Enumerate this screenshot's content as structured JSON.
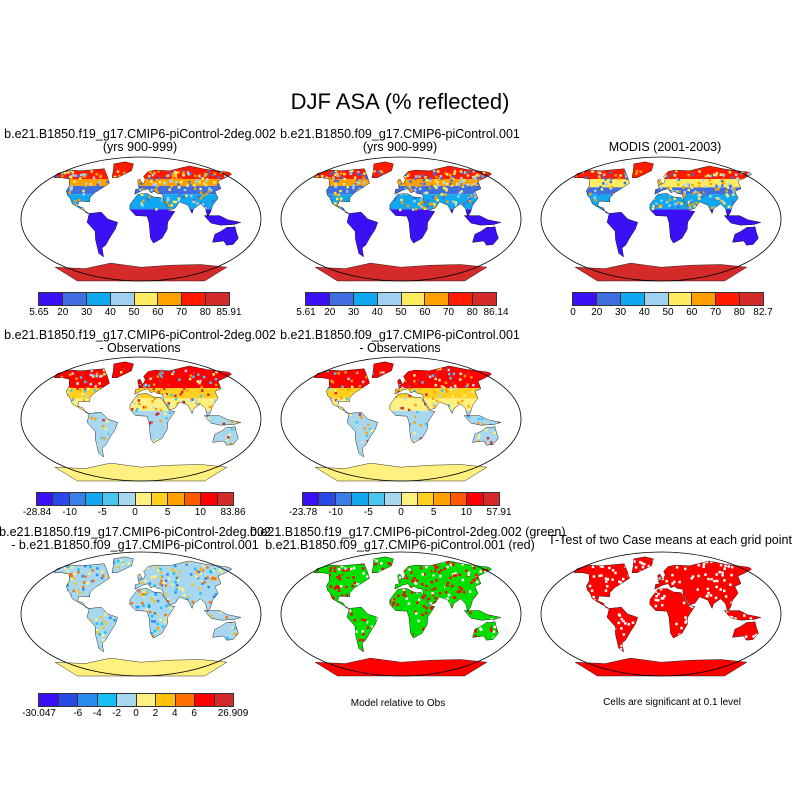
{
  "title": "DJF ASA (% reflected)",
  "panels": [
    {
      "id": "m1",
      "title1": "b.e21.B1850.f19_g17.CMIP6-piControl-2deg.002",
      "title2": "(yrs 900-999)"
    },
    {
      "id": "m2",
      "title1": "b.e21.B1850.f09_g17.CMIP6-piControl.001",
      "title2": "(yrs 900-999)"
    },
    {
      "id": "m3",
      "title1": "MODIS (2001-2003)",
      "title2": ""
    },
    {
      "id": "m4",
      "title1": "b.e21.B1850.f19_g17.CMIP6-piControl-2deg.002",
      "title2": "- Observations"
    },
    {
      "id": "m5",
      "title1": "b.e21.B1850.f09_g17.CMIP6-piControl.001",
      "title2": "- Observations"
    },
    {
      "id": "m7",
      "title1": "b.e21.B1850.f19_g17.CMIP6-piControl-2deg.002",
      "title2": "- b.e21.B1850.f09_g17.CMIP6-piControl.001"
    },
    {
      "id": "m8",
      "title1": "b.e21.B1850.f19_g17.CMIP6-piControl-2deg.002 (green)",
      "title2": "b.e21.B1850.f09_g17.CMIP6-piControl.001 (red)"
    },
    {
      "id": "m9",
      "title1": "T-Test of two Case means at each grid point",
      "title2": ""
    }
  ],
  "notes": {
    "model_relative": "Model relative to Obs",
    "significance": "Cells are significant at 0.1 level"
  },
  "chart_data": [
    {
      "type": "heatmap",
      "map": "m1",
      "colorbar_labels": [
        "5.65",
        "20",
        "30",
        "40",
        "50",
        "60",
        "70",
        "80",
        "85.91"
      ],
      "colors": [
        "#3c10f5",
        "#3f6ee0",
        "#10a8f0",
        "#a0d2f0",
        "#ffec60",
        "#ffa000",
        "#ff1a00",
        "#d42a2a"
      ]
    },
    {
      "type": "heatmap",
      "map": "m2",
      "colorbar_labels": [
        "5.61",
        "20",
        "30",
        "40",
        "50",
        "60",
        "70",
        "80",
        "86.14"
      ],
      "colors": [
        "#3c10f5",
        "#3f6ee0",
        "#10a8f0",
        "#a0d2f0",
        "#ffec60",
        "#ffa000",
        "#ff1a00",
        "#d42a2a"
      ]
    },
    {
      "type": "heatmap",
      "map": "m3",
      "colorbar_labels": [
        "0",
        "20",
        "30",
        "40",
        "50",
        "60",
        "70",
        "80",
        "82.7"
      ],
      "colors": [
        "#3c10f5",
        "#3f6ee0",
        "#10a8f0",
        "#a0d2f0",
        "#ffec60",
        "#ffa000",
        "#ff1a00",
        "#d42a2a"
      ]
    },
    {
      "type": "heatmap",
      "map": "m4",
      "colorbar_labels": [
        "-28.84",
        "-10",
        "-5",
        "0",
        "5",
        "10",
        "83.86"
      ],
      "colors": [
        "#3c10f5",
        "#2848e8",
        "#3a7ee8",
        "#12a8f0",
        "#4ac4f0",
        "#a8d8f0",
        "#fff080",
        "#ffd020",
        "#ffa000",
        "#ff5a00",
        "#ff0000",
        "#d42a2a"
      ]
    },
    {
      "type": "heatmap",
      "map": "m5",
      "colorbar_labels": [
        "-23.78",
        "-10",
        "-5",
        "0",
        "5",
        "10",
        "57.91"
      ],
      "colors": [
        "#3c10f5",
        "#2848e8",
        "#3a7ee8",
        "#12a8f0",
        "#4ac4f0",
        "#a8d8f0",
        "#fff080",
        "#ffd020",
        "#ffa000",
        "#ff5a00",
        "#ff0000",
        "#d42a2a"
      ]
    },
    {
      "type": "heatmap",
      "map": "m7",
      "colorbar_labels": [
        "-30.047",
        "-6",
        "-4",
        "-2",
        "0",
        "2",
        "4",
        "6",
        "26.909"
      ],
      "colors": [
        "#3c10f5",
        "#2848e8",
        "#2a8cf0",
        "#14c0f4",
        "#a8d8f0",
        "#fff080",
        "#ffc010",
        "#ff7000",
        "#ff0000",
        "#d42a2a"
      ]
    },
    {
      "type": "heatmap",
      "map": "m8",
      "colorbar_labels": [],
      "colors": [
        "#00e000",
        "#ff0000"
      ]
    },
    {
      "type": "heatmap",
      "map": "m9",
      "colorbar_labels": [],
      "colors": [
        "#ff0000"
      ]
    }
  ]
}
